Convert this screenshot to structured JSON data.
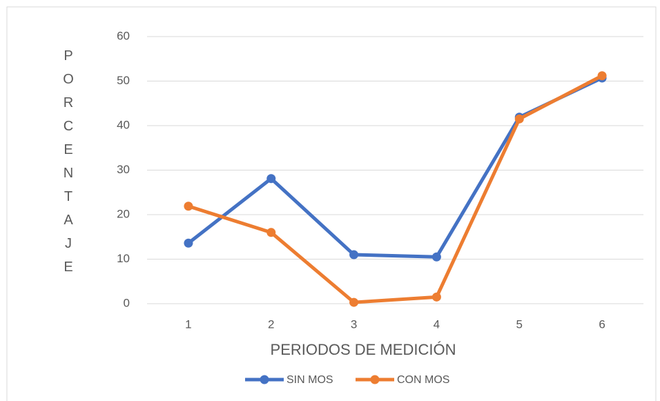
{
  "chart_data": {
    "type": "line",
    "xlabel": "PERIODOS DE MEDICIÓN",
    "ylabel": "PORCENTAJE",
    "categories": [
      "1",
      "2",
      "3",
      "4",
      "5",
      "6"
    ],
    "series": [
      {
        "name": "SIN MOS",
        "color": "#4472c4",
        "values": [
          13.6,
          28.1,
          11.0,
          10.5,
          41.9,
          50.7
        ]
      },
      {
        "name": "CON MOS",
        "color": "#ed7d31",
        "values": [
          21.9,
          16.0,
          0.3,
          1.5,
          41.5,
          51.2
        ]
      }
    ],
    "ylim": [
      0,
      60
    ],
    "yticks": [
      0,
      10,
      20,
      30,
      40,
      50,
      60
    ],
    "grid": true,
    "legend": "bottom"
  }
}
